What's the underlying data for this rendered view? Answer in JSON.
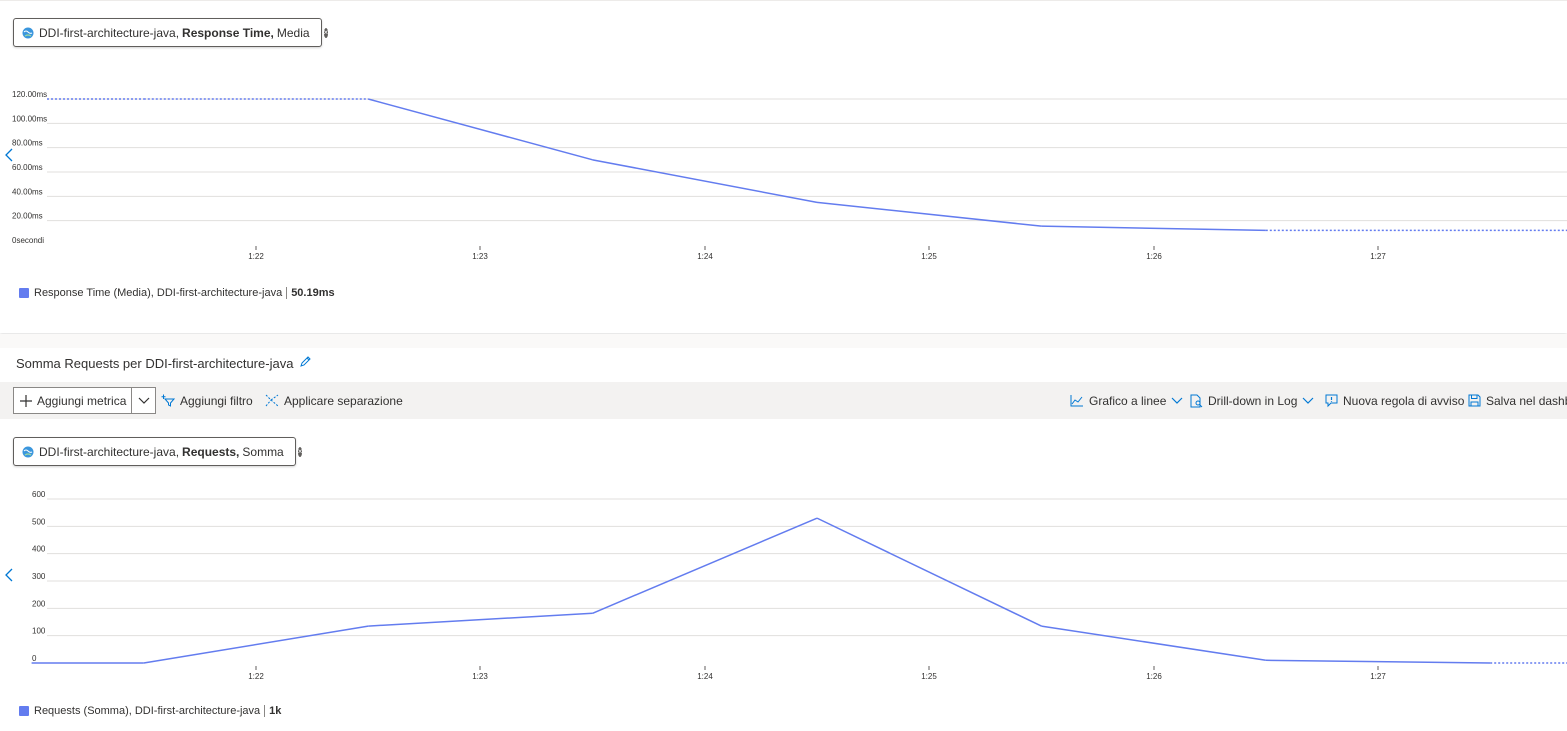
{
  "chart1": {
    "pill": {
      "resource": "DDI-first-architecture-java,",
      "metric": "Response Time,",
      "aggregation": "Media"
    },
    "legend": {
      "label": "Response Time (Media), DDI-first-architecture-java",
      "value": "50.19ms"
    }
  },
  "chart2": {
    "title": "Somma Requests per DDI-first-architecture-java",
    "pill": {
      "resource": "DDI-first-architecture-java,",
      "metric": "Requests,",
      "aggregation": "Somma"
    },
    "legend": {
      "label": "Requests (Somma), DDI-first-architecture-java",
      "value": "1k"
    }
  },
  "toolbar": {
    "add_metric": "Aggiungi metrica",
    "add_filter": "Aggiungi filtro",
    "apply_split": "Applicare separazione",
    "chart_type": "Grafico a linee",
    "drill_down": "Drill-down in Log",
    "new_alert": "Nuova regola di avviso",
    "save_dashboard": "Salva nel dashb"
  },
  "colors": {
    "series": "#637cef",
    "accent": "#0078d4",
    "grid": "#e1dfdd"
  },
  "chart_data": [
    {
      "type": "line",
      "title": "",
      "x": [
        "1:21:30",
        "1:22:30",
        "1:23:30",
        "1:24:30",
        "1:25:30",
        "1:26:30",
        "1:27:30"
      ],
      "x_ticks": [
        "1:22",
        "1:23",
        "1:24",
        "1:25",
        "1:26",
        "1:27"
      ],
      "y_ticks": [
        "120.00ms",
        "100.00ms",
        "80.00ms",
        "60.00ms",
        "40.00ms",
        "20.00ms",
        "0secondi"
      ],
      "ylim": [
        0,
        120
      ],
      "series": [
        {
          "name": "Response Time (Media), DDI-first-architecture-java",
          "values": [
            120,
            120,
            70,
            35,
            15.5,
            12,
            12
          ]
        }
      ],
      "dashed_segments": "first and last segments dotted",
      "grid": true,
      "legend_position": "bottom-left"
    },
    {
      "type": "line",
      "title": "",
      "x": [
        "1:21:00",
        "1:21:30",
        "1:22:30",
        "1:23:30",
        "1:24:30",
        "1:25:30",
        "1:26:30",
        "1:27:30",
        "1:28:00"
      ],
      "x_ticks": [
        "1:22",
        "1:23",
        "1:24",
        "1:25",
        "1:26",
        "1:27"
      ],
      "y_ticks": [
        "600",
        "500",
        "400",
        "300",
        "200",
        "100",
        "0"
      ],
      "ylim": [
        0,
        600
      ],
      "series": [
        {
          "name": "Requests (Somma), DDI-first-architecture-java",
          "values": [
            0,
            0,
            135,
            182,
            530,
            135,
            10,
            0,
            0
          ]
        }
      ],
      "dashed_segments": "last segment dotted",
      "grid": true,
      "legend_position": "bottom-left"
    }
  ]
}
